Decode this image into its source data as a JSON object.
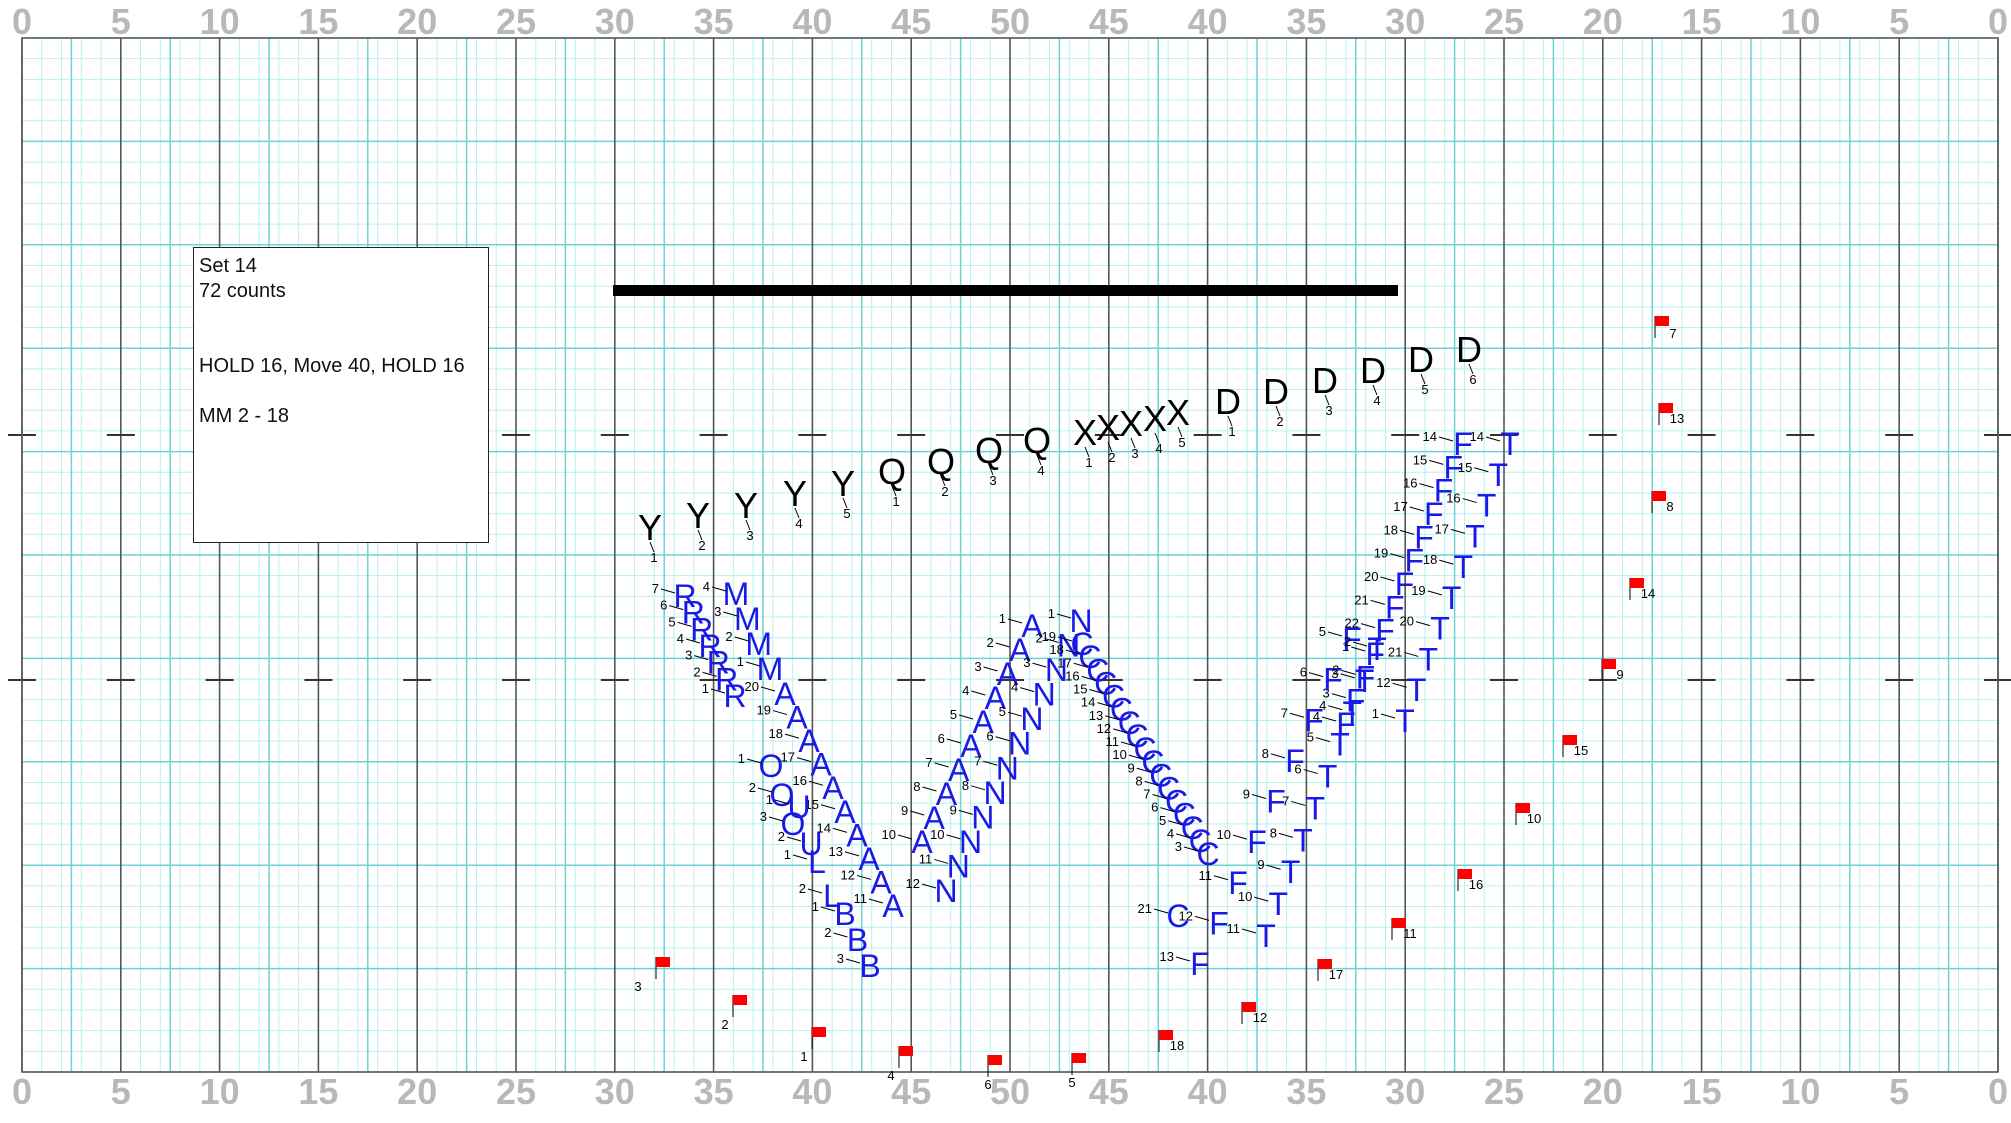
{
  "yard_labels_top": [
    "0",
    "5",
    "10",
    "15",
    "20",
    "25",
    "30",
    "35",
    "40",
    "45",
    "50",
    "45",
    "40",
    "35",
    "30",
    "25",
    "20",
    "15",
    "10",
    "5",
    "0"
  ],
  "yard_labels_bottom": [
    "0",
    "5",
    "10",
    "15",
    "20",
    "25",
    "30",
    "35",
    "40",
    "45",
    "50",
    "45",
    "40",
    "35",
    "30",
    "25",
    "20",
    "15",
    "10",
    "5",
    "0"
  ],
  "info": {
    "set": "Set 14",
    "counts": "72 counts",
    "instructions": "HOLD 16, Move 40, HOLD 16",
    "measures": "MM 2 - 18"
  },
  "colors": {
    "minor_grid": "#b9f0f0",
    "major_grid": "#6fd3d3",
    "yard_line": "#555555",
    "performer_blue": "#1a1ae6",
    "flag_red": "#ff0000"
  },
  "black_sections": [
    {
      "symbol": "Y",
      "numbers": [
        "1",
        "2",
        "3",
        "4",
        "5"
      ]
    },
    {
      "symbol": "Q",
      "numbers": [
        "1",
        "2",
        "3",
        "4"
      ]
    },
    {
      "symbol": "X",
      "numbers": [
        "1",
        "2",
        "3",
        "4",
        "5"
      ]
    },
    {
      "symbol": "D",
      "numbers": [
        "1",
        "2",
        "3",
        "4",
        "5",
        "6"
      ]
    }
  ],
  "flags": [
    "7",
    "13",
    "8",
    "14",
    "9",
    "15",
    "10",
    "16",
    "11",
    "17",
    "12",
    "18",
    "5",
    "6",
    "4",
    "1",
    "2",
    "3"
  ],
  "blue_sections": {
    "R": [
      "7",
      "6",
      "5",
      "4",
      "3",
      "2",
      "1"
    ],
    "M": [
      "4",
      "3",
      "2",
      "1"
    ],
    "A_left": [
      "20",
      "19",
      "18",
      "17",
      "16",
      "15",
      "14",
      "13",
      "12",
      "11"
    ],
    "O": [
      "1",
      "2",
      "3"
    ],
    "U": [
      "1",
      "2"
    ],
    "L": [
      "1",
      "2"
    ],
    "B": [
      "1",
      "2",
      "3"
    ],
    "A_right": [
      "1",
      "2",
      "3",
      "4",
      "5",
      "6",
      "7",
      "8",
      "9",
      "10"
    ],
    "N": [
      "1",
      "2",
      "3",
      "4",
      "5",
      "6",
      "7",
      "8",
      "9",
      "10",
      "11",
      "12"
    ],
    "C": [
      "19",
      "18",
      "17",
      "16",
      "15",
      "14",
      "13",
      "12",
      "11",
      "10",
      "9",
      "8",
      "7",
      "6",
      "5",
      "4",
      "3",
      "21"
    ],
    "F": [
      "14",
      "15",
      "16",
      "17",
      "18",
      "19",
      "20",
      "21",
      "22",
      "1",
      "2",
      "3",
      "4",
      "5",
      "6",
      "7",
      "8",
      "9",
      "10",
      "11",
      "12",
      "13"
    ],
    "T": [
      "14",
      "15",
      "16",
      "17",
      "18",
      "19",
      "20",
      "21",
      "12",
      "1",
      "2",
      "3",
      "4",
      "5",
      "6",
      "7",
      "8",
      "9",
      "10",
      "11"
    ]
  }
}
